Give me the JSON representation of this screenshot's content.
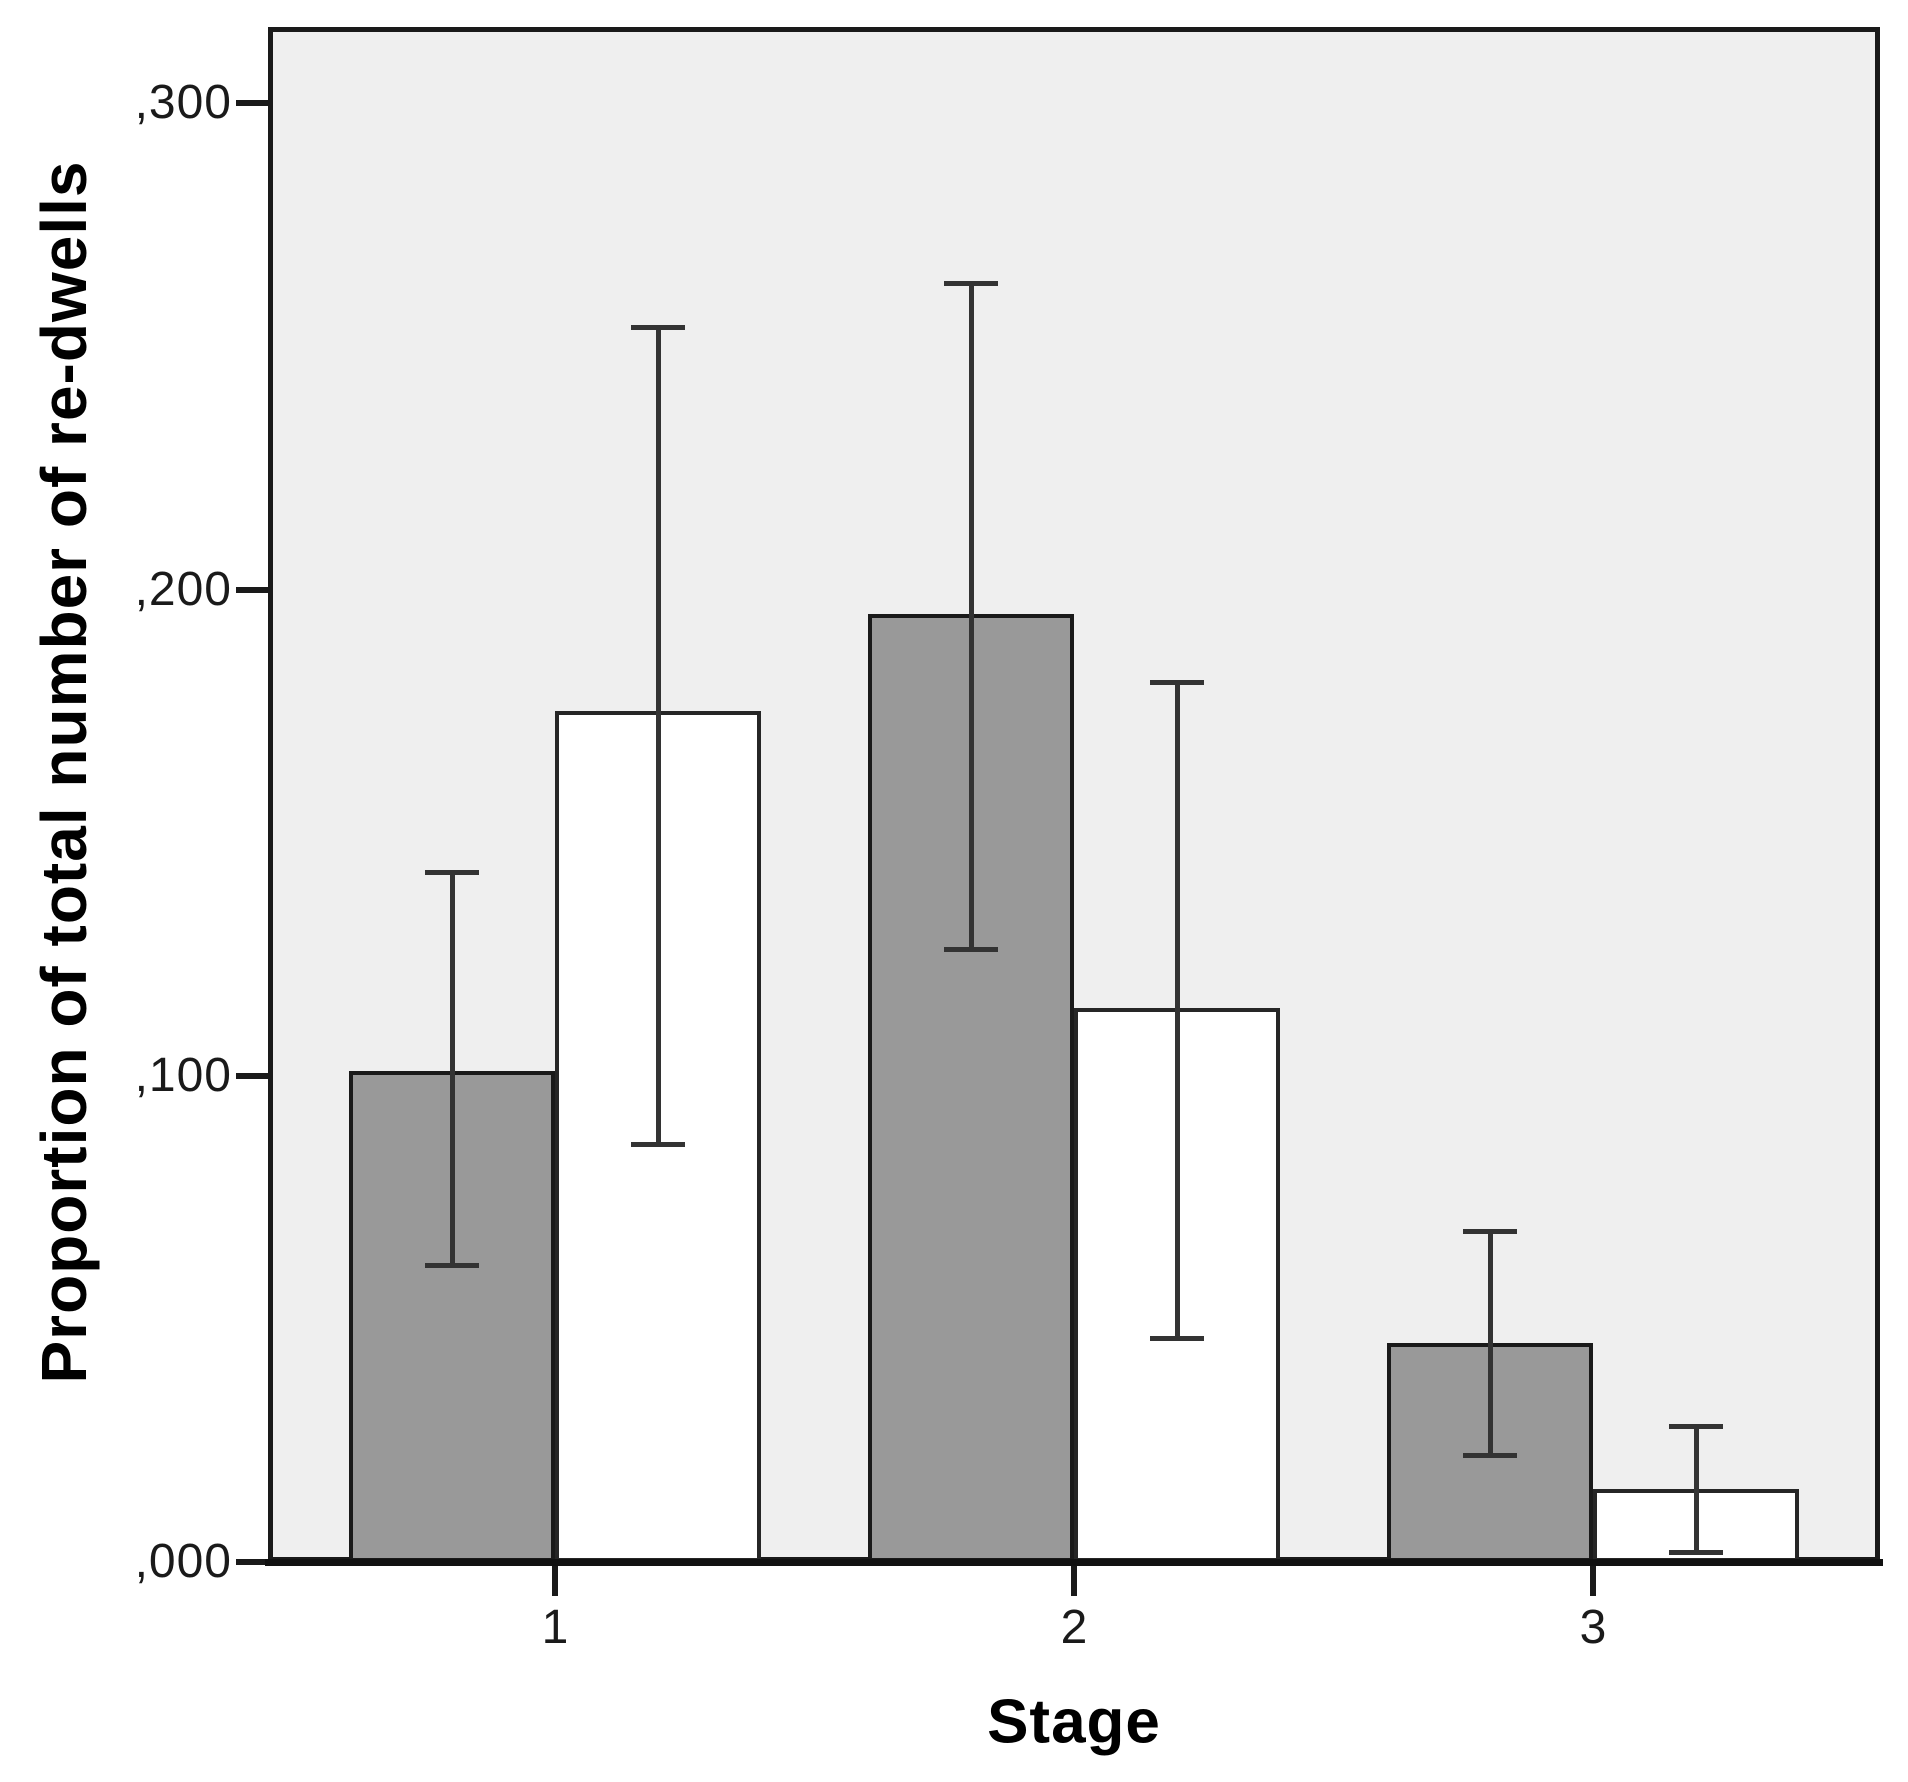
{
  "chart_data": {
    "type": "bar",
    "title": "",
    "xlabel": "Stage",
    "ylabel": "Proportion of total number of re-dwells",
    "categories": [
      "1",
      "2",
      "3"
    ],
    "series": [
      {
        "name": "gray-bars",
        "color": "#999999",
        "border": "#1a1a1a",
        "values": [
          0.101,
          0.195,
          0.045
        ],
        "error_low": [
          0.061,
          0.126,
          0.022
        ],
        "error_high": [
          0.142,
          0.263,
          0.068
        ]
      },
      {
        "name": "white-bars",
        "color": "#ffffff",
        "border": "#262626",
        "values": [
          0.175,
          0.114,
          0.015
        ],
        "error_low": [
          0.086,
          0.046,
          0.002
        ],
        "error_high": [
          0.254,
          0.181,
          0.028
        ]
      }
    ],
    "yticks": [
      {
        "value": 0.0,
        "label": ",000"
      },
      {
        "value": 0.1,
        "label": ",100"
      },
      {
        "value": 0.2,
        "label": ",200"
      },
      {
        "value": 0.3,
        "label": ",300"
      }
    ],
    "ylim": [
      0,
      0.3157
    ],
    "grid": false,
    "legend": "none",
    "plot_background": "#efefef",
    "error_bar_color": "#333333"
  }
}
